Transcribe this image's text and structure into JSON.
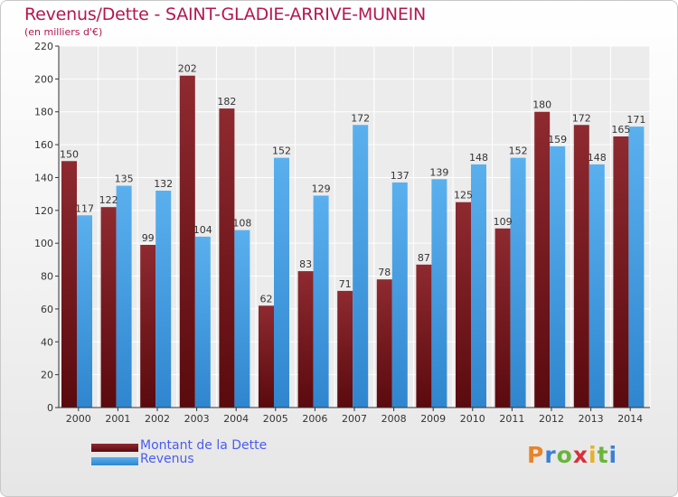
{
  "chart_data": {
    "type": "bar",
    "title": "Revenus/Dette - SAINT-GLADIE-ARRIVE-MUNEIN",
    "subtitle": "(en milliers d'€)",
    "categories": [
      "2000",
      "2001",
      "2002",
      "2003",
      "2004",
      "2005",
      "2006",
      "2007",
      "2008",
      "2009",
      "2010",
      "2011",
      "2012",
      "2013",
      "2014"
    ],
    "series": [
      {
        "name": "Montant de la Dette",
        "color": "#8b1a1e",
        "values": [
          150,
          122,
          99,
          202,
          182,
          62,
          83,
          71,
          78,
          87,
          125,
          109,
          180,
          172,
          165
        ]
      },
      {
        "name": "Revenus",
        "color": "#3a9ee4",
        "values": [
          117,
          135,
          132,
          104,
          108,
          152,
          129,
          172,
          137,
          139,
          148,
          152,
          159,
          148,
          171
        ]
      }
    ],
    "ylim": [
      0,
      220
    ],
    "yticks": [
      0,
      20,
      40,
      60,
      80,
      100,
      120,
      140,
      160,
      180,
      200,
      220
    ],
    "grid": true,
    "legend_position": "bottom-left"
  },
  "brand": {
    "text": "Proxiti"
  }
}
